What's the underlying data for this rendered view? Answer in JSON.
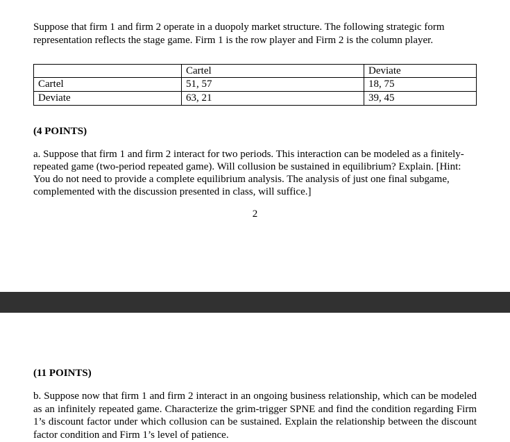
{
  "intro": "Suppose that firm 1 and firm 2 operate in a duopoly market structure. The following strategic form representation reflects the stage game. Firm 1 is the row player and Firm 2 is the column player.",
  "table": {
    "col_headers": [
      "Cartel",
      "Deviate"
    ],
    "rows": [
      {
        "label": "Cartel",
        "c1": "51, 57",
        "c2": "18, 75"
      },
      {
        "label": "Deviate",
        "c1": "63, 21",
        "c2": "39, 45"
      }
    ]
  },
  "qa": {
    "points_label": "(4 POINTS)",
    "text": "a. Suppose that firm 1 and firm 2 interact for two periods. This interaction can be modeled as a finitely-repeated game (two-period repeated game). Will collusion be sustained in equilibrium? Explain. [Hint: You do not need to provide a complete equilibrium analysis. The analysis of just one final subgame, complemented with the discussion presented in class, will suffice.]"
  },
  "page_number": "2",
  "qb": {
    "points_label": "(11 POINTS)",
    "text": "b. Suppose now that firm 1 and firm 2 interact in an ongoing business relationship, which can be modeled as an infinitely repeated game. Characterize the grim-trigger SPNE and find the condition regarding Firm 1’s discount factor under which collusion can be sustained. Explain  the relationship between the discount factor condition and Firm 1’s level of patience."
  }
}
